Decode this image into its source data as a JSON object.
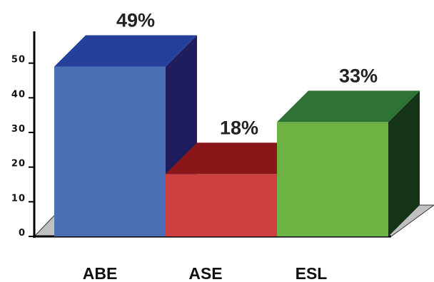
{
  "chart_data": {
    "type": "bar",
    "categories": [
      "ABE",
      "ASE",
      "ESL"
    ],
    "values": [
      49,
      18,
      33
    ],
    "data_labels": [
      "49%",
      "18%",
      "33%"
    ],
    "yticks": [
      "0",
      "10",
      "20",
      "30",
      "40",
      "50"
    ],
    "ylim": [
      0,
      60
    ],
    "grid": false,
    "legend": "none",
    "style": "3d",
    "colors": [
      {
        "front": "#4a6fb5",
        "top": "#24409a",
        "side": "#1f1d5e"
      },
      {
        "front": "#cc3f3f",
        "top": "#8a161a",
        "side": "#8a161a"
      },
      {
        "front": "#6db344",
        "top": "#2e7333",
        "side": "#163516"
      }
    ],
    "floor_color": "#c0c0c0"
  }
}
